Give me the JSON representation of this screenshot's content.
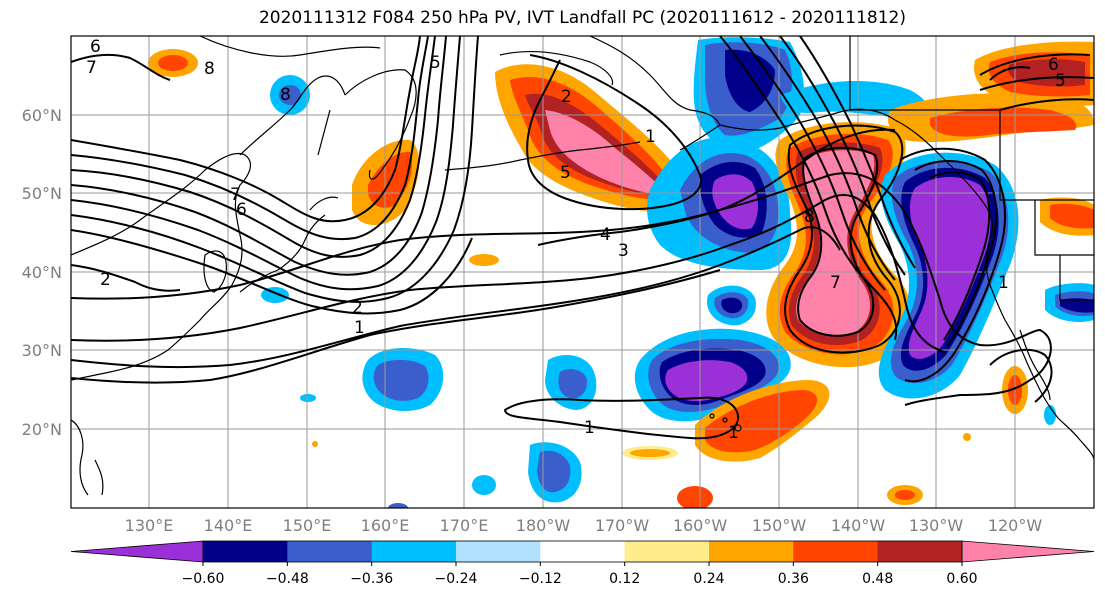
{
  "title": "2020111312 F084 250 hPa PV, IVT Landfall PC (2020111612 - 2020111812)",
  "lat_labels": [
    "60°N",
    "50°N",
    "40°N",
    "30°N",
    "20°N"
  ],
  "lon_labels": [
    "130°E",
    "140°E",
    "150°E",
    "160°E",
    "170°E",
    "180°W",
    "170°W",
    "160°W",
    "150°W",
    "140°W",
    "130°W",
    "120°W"
  ],
  "colorbar": {
    "colors": [
      "#9b30d9",
      "#00008b",
      "#3a5fcd",
      "#00bfff",
      "#b0e2ff",
      "#ffffff",
      "#ffec8b",
      "#ffa500",
      "#ff4500",
      "#b22222",
      "#ff82ab"
    ],
    "ticks": [
      "−0.60",
      "−0.48",
      "−0.36",
      "−0.24",
      "−0.12",
      "0.12",
      "0.24",
      "0.36",
      "0.48",
      "0.60"
    ]
  },
  "contour_labels": [
    "6",
    "7",
    "8",
    "8",
    "7",
    "6",
    "5",
    "2",
    "1",
    "5",
    "4",
    "3",
    "2",
    "1",
    "1",
    "1",
    "8",
    "7",
    "6",
    "5",
    "2",
    "1"
  ]
}
